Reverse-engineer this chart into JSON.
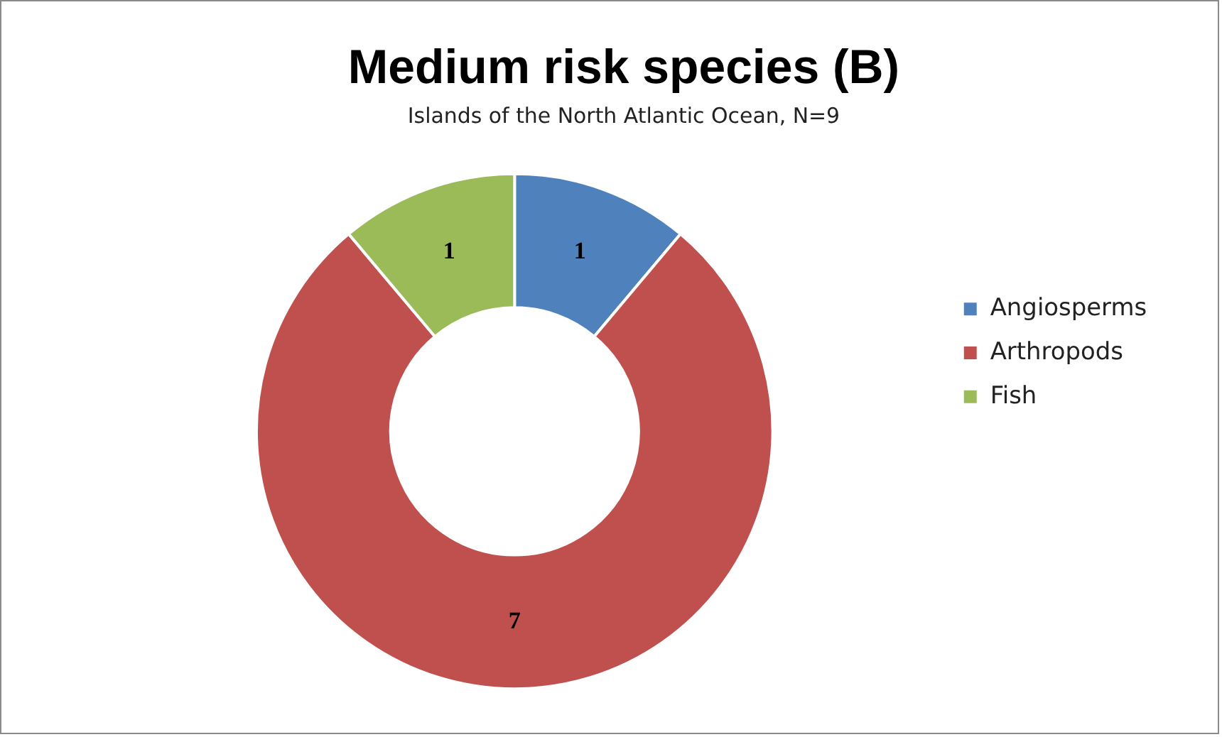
{
  "chart_data": {
    "type": "donut",
    "title": "Medium risk species (B)",
    "subtitle": "Islands of the North Atlantic Ocean, N=9",
    "categories": [
      "Angiosperms",
      "Arthropods",
      "Fish"
    ],
    "values": [
      1,
      7,
      1
    ],
    "colors": [
      "#4f81bd",
      "#c0504d",
      "#9bbb59"
    ],
    "data_labels": true,
    "legend": "right"
  }
}
